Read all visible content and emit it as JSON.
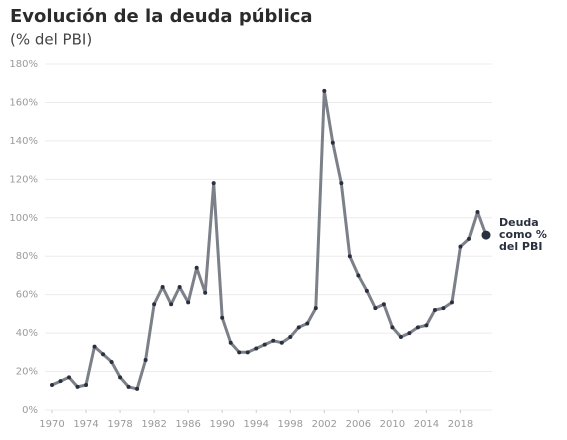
{
  "chart_data": {
    "type": "line",
    "title": "Evolución de la deuda pública",
    "subtitle": "(% del PBI)",
    "annotation": [
      "Deuda",
      "como %",
      "del PBI"
    ],
    "x": [
      1970,
      1971,
      1972,
      1973,
      1974,
      1975,
      1976,
      1977,
      1978,
      1979,
      1980,
      1981,
      1982,
      1983,
      1984,
      1985,
      1986,
      1987,
      1988,
      1989,
      1990,
      1991,
      1992,
      1993,
      1994,
      1995,
      1996,
      1997,
      1998,
      1999,
      2000,
      2001,
      2002,
      2003,
      2004,
      2005,
      2006,
      2007,
      2008,
      2009,
      2010,
      2011,
      2012,
      2013,
      2014,
      2015,
      2016,
      2017,
      2018,
      2019,
      2020,
      2021
    ],
    "series": [
      {
        "color": "#7c8089",
        "marker_color": "#2b3040",
        "values": [
          13,
          15,
          17,
          12,
          13,
          33,
          29,
          25,
          17,
          12,
          11,
          26,
          55,
          64,
          55,
          64,
          56,
          74,
          61,
          118,
          48,
          35,
          30,
          30,
          32,
          34,
          36,
          35,
          38,
          43,
          45,
          53,
          166,
          139,
          118,
          80,
          70,
          62,
          53,
          55,
          43,
          38,
          40,
          43,
          44,
          52,
          53,
          56,
          85,
          89,
          103,
          91
        ]
      }
    ],
    "xlim": [
      1970,
      2021
    ],
    "xticks": [
      1970,
      1974,
      1978,
      1982,
      1986,
      1990,
      1994,
      1998,
      2002,
      2006,
      2010,
      2014,
      2018
    ],
    "ylim": [
      0,
      180
    ],
    "yticks": [
      {
        "value": 0,
        "label": "0%"
      },
      {
        "value": 20,
        "label": "20%"
      },
      {
        "value": 40,
        "label": "40%"
      },
      {
        "value": 60,
        "label": "60%"
      },
      {
        "value": 80,
        "label": "80%"
      },
      {
        "value": 100,
        "label": "100%"
      },
      {
        "value": 120,
        "label": "120%"
      },
      {
        "value": 140,
        "label": "140%"
      },
      {
        "value": 160,
        "label": "160%"
      },
      {
        "value": 180,
        "label": "180%"
      }
    ],
    "grid": true
  }
}
